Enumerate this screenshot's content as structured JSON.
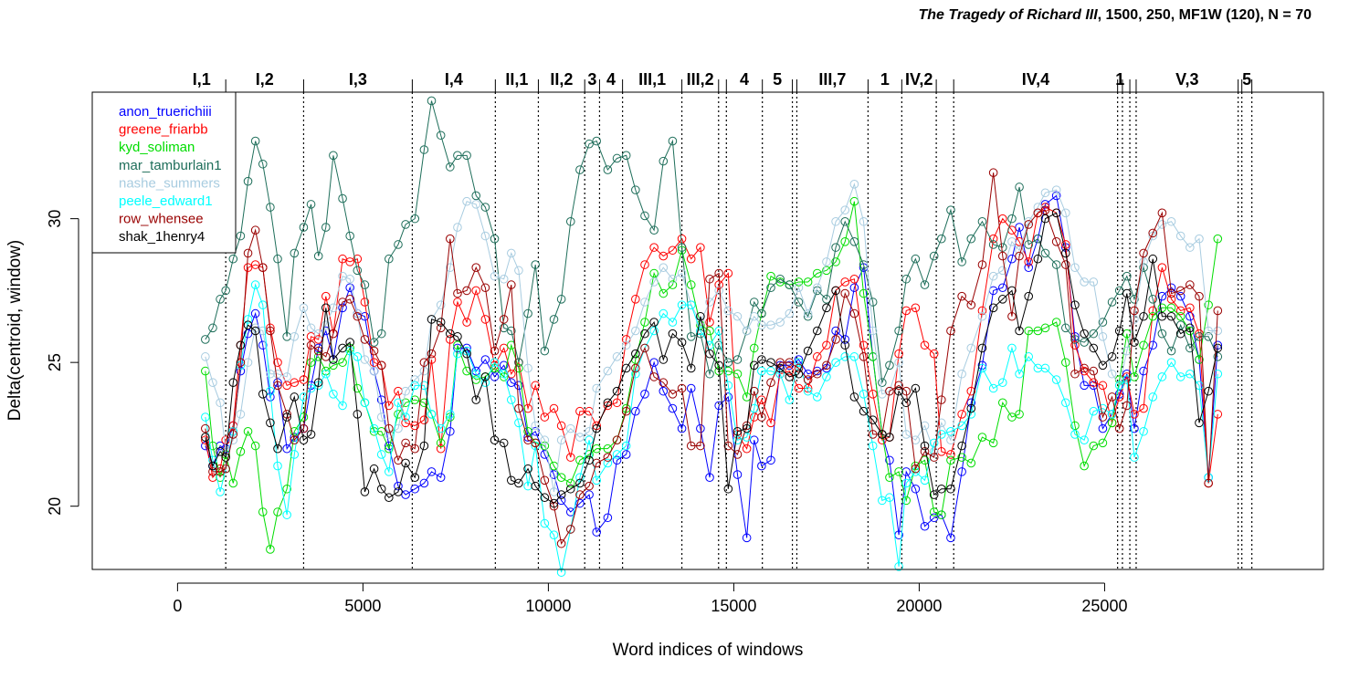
{
  "title_work": "The Tragedy of Richard III",
  "title_rest": ", 1500, 250, MF1W (120), N = 70",
  "chart_data": {
    "type": "line",
    "xlabel": "Word indices of windows",
    "ylabel": "Delta(centroid, window)",
    "xlim": [
      -2300,
      30900
    ],
    "ylim": [
      17.8,
      34.4
    ],
    "xticks": [
      0,
      5000,
      10000,
      15000,
      20000,
      25000
    ],
    "yticks": [
      20,
      25,
      30
    ],
    "markers": "open-circle",
    "legend_position": "top-left",
    "scenes": [
      {
        "pos": 1300,
        "label": "I,1"
      },
      {
        "pos": 3400,
        "label": "I,2"
      },
      {
        "pos": 6330,
        "label": "I,3"
      },
      {
        "pos": 8570,
        "label": "I,4"
      },
      {
        "pos": 9730,
        "label": "II,1"
      },
      {
        "pos": 10980,
        "label": "II,2"
      },
      {
        "pos": 11380,
        "label": "3"
      },
      {
        "pos": 12000,
        "label": "4"
      },
      {
        "pos": 13600,
        "label": "III,1"
      },
      {
        "pos": 14590,
        "label": "III,2"
      },
      {
        "pos": 14800,
        "label": ""
      },
      {
        "pos": 15770,
        "label": "4"
      },
      {
        "pos": 16580,
        "label": "5"
      },
      {
        "pos": 16700,
        "label": ""
      },
      {
        "pos": 18620,
        "label": "III,7"
      },
      {
        "pos": 19530,
        "label": "1"
      },
      {
        "pos": 20460,
        "label": "IV,2"
      },
      {
        "pos": 20930,
        "label": ""
      },
      {
        "pos": 25350,
        "label": "IV,4"
      },
      {
        "pos": 25480,
        "label": "1"
      },
      {
        "pos": 25680,
        "label": ""
      },
      {
        "pos": 25850,
        "label": ""
      },
      {
        "pos": 28600,
        "label": "V,3"
      },
      {
        "pos": 28700,
        "label": ""
      },
      {
        "pos": 28970,
        "label": "5"
      }
    ],
    "x": [
      750,
      950,
      1150,
      1300,
      1500,
      1700,
      1900,
      2100,
      2300,
      2500,
      2700,
      2950,
      3150,
      3400,
      3600,
      3800,
      4000,
      4200,
      4450,
      4650,
      4850,
      5050,
      5300,
      5500,
      5700,
      5950,
      6150,
      6400,
      6650,
      6850,
      7100,
      7350,
      7550,
      7800,
      8050,
      8300,
      8550,
      8800,
      9000,
      9200,
      9450,
      9650,
      9900,
      10150,
      10350,
      10600,
      10850,
      11100,
      11300,
      11600,
      11850,
      12100,
      12350,
      12600,
      12850,
      13100,
      13350,
      13600,
      13850,
      14100,
      14350,
      14600,
      14850,
      15100,
      15350,
      15550,
      15750,
      16000,
      16250,
      16500,
      16750,
      17000,
      17250,
      17500,
      17750,
      18000,
      18250,
      18500,
      18750,
      19000,
      19200,
      19450,
      19650,
      19900,
      20150,
      20400,
      20600,
      20850,
      21150,
      21400,
      21700,
      22000,
      22250,
      22500,
      22700,
      22950,
      23200,
      23400,
      23700,
      23950,
      24200,
      24450,
      24700,
      24950,
      25200,
      25400,
      25600,
      25800,
      26050,
      26300,
      26550,
      26800,
      27050,
      27300,
      27550,
      27800,
      28050
    ],
    "series": [
      {
        "name": "anon_truerichiii",
        "color": "#0000ff",
        "values": [
          22.1,
          21.4,
          22.1,
          22.0,
          22.8,
          24.7,
          26.0,
          26.7,
          25.6,
          23.8,
          24.3,
          22.0,
          22.4,
          22.7,
          24.2,
          25.5,
          26.1,
          25.1,
          26.9,
          27.6,
          26.7,
          26.6,
          24.7,
          23.7,
          22.1,
          20.7,
          20.4,
          20.6,
          20.8,
          21.2,
          21.0,
          22.6,
          25.5,
          25.5,
          24.7,
          25.1,
          24.5,
          24.9,
          24.3,
          24.2,
          22.4,
          22.6,
          21.8,
          21.1,
          20.2,
          19.8,
          20.1,
          20.4,
          19.1,
          19.6,
          21.6,
          21.8,
          23.3,
          23.9,
          25.0,
          24.0,
          23.4,
          22.7,
          24.1,
          22.7,
          21.0,
          23.5,
          23.8,
          21.1,
          18.9,
          22.3,
          21.4,
          21.6,
          24.9,
          24.9,
          25.1,
          24.6,
          24.7,
          24.8,
          26.1,
          25.8,
          27.6,
          28.3,
          25.2,
          22.5,
          21.6,
          19.0,
          21.2,
          20.6,
          19.3,
          19.6,
          19.7,
          18.9,
          21.2,
          23.6,
          24.9,
          27.5,
          27.6,
          28.6,
          29.7,
          28.3,
          29.3,
          30.5,
          30.8,
          29.0,
          25.9,
          24.2,
          24.2,
          22.7,
          23.2,
          23.9,
          24.6,
          22.7,
          24.7,
          25.6,
          27.3,
          27.6,
          27.3,
          26.6,
          25.1,
          21.0,
          25.6
        ]
      },
      {
        "name": "greene_friarbb",
        "color": "#ff0000",
        "values": [
          22.3,
          21.0,
          21.3,
          22.3,
          22.8,
          25.6,
          28.3,
          28.4,
          28.3,
          26.2,
          25.0,
          24.2,
          24.3,
          24.4,
          25.9,
          25.8,
          27.3,
          26.0,
          28.6,
          28.5,
          28.6,
          27.1,
          25.0,
          24.9,
          23.5,
          24.0,
          22.9,
          22.8,
          23.0,
          25.1,
          22.0,
          25.8,
          27.1,
          26.4,
          27.5,
          26.5,
          24.9,
          25.5,
          24.6,
          25.0,
          23.4,
          24.2,
          23.1,
          23.4,
          22.8,
          21.7,
          23.3,
          23.3,
          22.8,
          23.5,
          23.6,
          25.8,
          27.2,
          28.4,
          29.0,
          28.7,
          28.9,
          29.3,
          28.6,
          29.0,
          26.4,
          27.7,
          28.1,
          22.5,
          22.0,
          23.1,
          23.7,
          22.9,
          24.6,
          24.7,
          24.1,
          24.1,
          25.2,
          25.6,
          27.5,
          27.8,
          27.9,
          25.6,
          23.9,
          22.3,
          22.4,
          25.3,
          26.8,
          26.9,
          25.6,
          25.3,
          21.9,
          21.8,
          23.2,
          24.0,
          26.8,
          29.3,
          30.0,
          29.6,
          29.2,
          28.5,
          30.2,
          30.4,
          30.2,
          29.1,
          25.6,
          24.7,
          24.3,
          24.2,
          22.9,
          23.8,
          24.5,
          23.2,
          23.4,
          26.8,
          28.3,
          27.2,
          26.8,
          26.9,
          26.0,
          20.8,
          23.2
        ]
      },
      {
        "name": "kyd_soliman",
        "color": "#00dd00",
        "values": [
          24.7,
          22.1,
          21.0,
          21.8,
          20.8,
          21.9,
          22.6,
          22.1,
          19.8,
          18.5,
          19.8,
          20.6,
          22.6,
          23.1,
          25.0,
          25.2,
          24.7,
          24.9,
          25.0,
          25.5,
          24.1,
          23.6,
          22.6,
          22.6,
          22.0,
          23.2,
          23.6,
          23.7,
          23.6,
          23.2,
          22.2,
          23.1,
          25.6,
          24.7,
          24.4,
          24.5,
          24.8,
          24.5,
          25.6,
          24.8,
          22.6,
          22.2,
          22.1,
          21.4,
          21.0,
          20.8,
          21.6,
          21.8,
          22.0,
          22.0,
          22.3,
          23.4,
          25.1,
          26.4,
          28.1,
          27.4,
          27.7,
          28.9,
          27.7,
          26.3,
          26.1,
          24.7,
          24.7,
          24.6,
          23.8,
          25.5,
          26.7,
          28.0,
          27.8,
          27.7,
          27.8,
          27.8,
          28.1,
          28.2,
          28.5,
          29.2,
          30.6,
          27.4,
          25.2,
          22.5,
          21.0,
          21.2,
          20.2,
          21.4,
          21.6,
          19.8,
          19.7,
          21.6,
          21.7,
          21.5,
          22.4,
          22.2,
          23.6,
          23.1,
          23.2,
          26.1,
          26.1,
          26.2,
          26.4,
          25.0,
          22.8,
          21.4,
          22.1,
          22.2,
          22.9,
          24.4,
          26.0,
          24.5,
          25.6,
          26.6,
          26.9,
          26.9,
          26.6,
          26.1,
          25.1,
          27.0,
          29.3
        ]
      },
      {
        "name": "mar_tamburlain1",
        "color": "#1e6e5a",
        "values": [
          25.8,
          26.2,
          27.2,
          27.5,
          28.6,
          29.4,
          31.3,
          32.7,
          31.9,
          30.4,
          28.6,
          25.9,
          28.8,
          29.7,
          30.5,
          28.7,
          29.7,
          32.2,
          30.7,
          29.4,
          28.2,
          27.7,
          25.7,
          26.0,
          28.6,
          29.1,
          29.8,
          30.0,
          32.4,
          34.1,
          32.9,
          31.8,
          32.2,
          32.2,
          30.8,
          30.4,
          29.3,
          26.2,
          26.1,
          25.0,
          26.7,
          28.4,
          25.4,
          26.5,
          27.2,
          29.9,
          31.7,
          32.6,
          32.7,
          31.7,
          32.1,
          32.2,
          31.0,
          30.1,
          29.6,
          32.0,
          32.7,
          29.0,
          25.9,
          26.0,
          24.6,
          25.6,
          25.0,
          25.1,
          26.1,
          27.1,
          26.7,
          27.6,
          27.9,
          27.7,
          27.1,
          26.6,
          27.5,
          27.2,
          29.0,
          29.9,
          29.2,
          28.4,
          27.1,
          24.3,
          24.9,
          26.1,
          27.9,
          28.6,
          27.7,
          28.7,
          29.3,
          30.3,
          28.5,
          29.3,
          29.9,
          29.1,
          29.0,
          30.0,
          31.1,
          29.1,
          29.3,
          28.8,
          28.4,
          26.2,
          25.8,
          25.7,
          26.0,
          26.4,
          27.1,
          27.5,
          28.0,
          27.2,
          28.3,
          27.2,
          26.0,
          25.4,
          26.3,
          25.5,
          25.9,
          25.9,
          25.2
        ]
      },
      {
        "name": "nashe_summers",
        "color": "#a8cce0",
        "values": [
          25.2,
          24.3,
          23.6,
          21.9,
          22.3,
          23.2,
          25.0,
          26.2,
          26.1,
          24.6,
          24.6,
          24.5,
          25.9,
          26.9,
          26.2,
          26.0,
          26.3,
          26.9,
          28.0,
          27.9,
          26.7,
          25.1,
          24.7,
          23.1,
          22.5,
          22.7,
          24.0,
          24.4,
          24.7,
          26.5,
          27.0,
          28.3,
          29.7,
          30.6,
          30.5,
          29.4,
          28.0,
          27.9,
          28.8,
          28.2,
          24.8,
          22.8,
          22.3,
          20.5,
          22.3,
          22.7,
          22.4,
          22.6,
          24.1,
          24.7,
          25.2,
          25.6,
          26.1,
          27.1,
          27.8,
          28.3,
          27.9,
          28.1,
          27.0,
          26.4,
          27.1,
          27.5,
          26.8,
          26.6,
          26.1,
          26.6,
          26.3,
          26.3,
          26.4,
          26.7,
          27.6,
          26.7,
          27.6,
          28.5,
          29.9,
          30.3,
          31.2,
          29.9,
          26.1,
          23.9,
          24.0,
          25.0,
          22.5,
          22.3,
          22.8,
          21.9,
          22.9,
          22.3,
          24.6,
          25.5,
          26.6,
          28.0,
          28.2,
          29.2,
          28.9,
          29.9,
          30.4,
          30.9,
          31.0,
          30.2,
          28.3,
          27.8,
          27.8,
          25.9,
          24.6,
          24.2,
          25.4,
          26.5,
          28.5,
          29.4,
          29.8,
          29.9,
          29.4,
          29.0,
          29.3,
          26.1,
          26.1
        ]
      },
      {
        "name": "peele_edward1",
        "color": "#00ffff",
        "values": [
          23.1,
          21.6,
          20.5,
          21.3,
          22.6,
          24.9,
          26.5,
          27.7,
          27.0,
          24.0,
          21.4,
          19.7,
          21.8,
          23.8,
          24.1,
          24.2,
          24.6,
          23.9,
          23.5,
          25.4,
          25.2,
          23.6,
          22.7,
          21.8,
          21.2,
          23.6,
          23.1,
          24.2,
          24.2,
          23.2,
          22.7,
          23.2,
          25.3,
          25.4,
          24.6,
          24.3,
          25.0,
          24.6,
          23.7,
          22.9,
          20.7,
          22.1,
          19.4,
          19.0,
          17.7,
          19.2,
          21.0,
          22.3,
          20.9,
          21.5,
          21.8,
          22.1,
          24.6,
          25.5,
          26.1,
          26.7,
          26.4,
          27.0,
          27.0,
          26.1,
          25.6,
          26.1,
          24.2,
          22.3,
          22.4,
          23.4,
          24.7,
          24.7,
          24.6,
          23.7,
          25.0,
          24.0,
          23.8,
          24.5,
          25.0,
          25.2,
          25.2,
          23.9,
          22.1,
          20.2,
          20.3,
          17.9,
          20.8,
          21.2,
          20.9,
          22.2,
          22.5,
          22.6,
          22.8,
          23.2,
          24.8,
          24.1,
          24.3,
          25.5,
          24.6,
          25.2,
          24.8,
          24.8,
          24.4,
          23.6,
          22.5,
          22.3,
          23.3,
          23.4,
          23.2,
          24.2,
          24.4,
          21.7,
          22.6,
          23.8,
          24.5,
          25.0,
          24.5,
          24.6,
          24.2,
          21.0,
          24.6
        ]
      },
      {
        "name": "row_whensee",
        "color": "#990000",
        "values": [
          22.7,
          21.2,
          21.2,
          21.3,
          22.5,
          25.0,
          28.8,
          29.6,
          28.3,
          26.1,
          24.2,
          23.2,
          22.3,
          22.7,
          25.6,
          25.4,
          25.2,
          26.0,
          27.1,
          27.2,
          26.6,
          25.8,
          25.4,
          24.9,
          22.7,
          21.6,
          22.2,
          22.0,
          25.0,
          25.3,
          26.2,
          29.3,
          27.4,
          27.5,
          28.3,
          27.6,
          25.4,
          26.5,
          27.7,
          23.4,
          22.3,
          22.2,
          20.9,
          20.0,
          18.7,
          19.2,
          20.4,
          20.7,
          21.5,
          21.7,
          22.3,
          23.3,
          24.8,
          25.5,
          24.5,
          24.3,
          23.9,
          24.1,
          22.1,
          22.1,
          27.9,
          28.1,
          22.1,
          21.8,
          22.8,
          24.0,
          23.1,
          24.3,
          25.0,
          25.0,
          24.8,
          24.4,
          24.6,
          24.9,
          25.8,
          27.4,
          26.7,
          25.2,
          22.5,
          22.5,
          24.0,
          24.2,
          24.0,
          21.3,
          21.9,
          21.7,
          23.7,
          26.1,
          27.3,
          27.0,
          28.4,
          31.6,
          28.7,
          26.6,
          28.7,
          29.8,
          30.2,
          30.3,
          29.2,
          28.4,
          24.6,
          24.8,
          24.7,
          23.1,
          23.8,
          22.7,
          23.5,
          26.8,
          28.8,
          29.5,
          30.2,
          27.4,
          27.5,
          27.7,
          27.3,
          20.8,
          26.8
        ]
      },
      {
        "name": "shak_1henry4",
        "color": "#000000",
        "values": [
          22.4,
          21.4,
          21.9,
          21.7,
          24.3,
          25.6,
          26.3,
          26.1,
          23.9,
          22.9,
          22.0,
          23.1,
          23.8,
          22.3,
          22.5,
          24.3,
          26.9,
          25.1,
          25.5,
          25.7,
          23.2,
          20.5,
          21.3,
          20.6,
          20.3,
          20.5,
          21.5,
          21.0,
          22.1,
          26.5,
          26.4,
          26.0,
          25.9,
          25.3,
          23.7,
          24.5,
          22.3,
          22.2,
          20.9,
          20.8,
          21.3,
          20.7,
          20.3,
          20.1,
          20.4,
          20.6,
          20.8,
          21.6,
          22.7,
          23.6,
          24.0,
          24.8,
          25.3,
          26.0,
          26.4,
          25.1,
          26.0,
          25.7,
          24.8,
          26.6,
          25.3,
          24.9,
          20.6,
          22.6,
          22.7,
          24.9,
          25.1,
          25.0,
          24.8,
          24.5,
          24.6,
          25.4,
          26.1,
          26.9,
          27.5,
          25.6,
          23.8,
          23.3,
          23.0,
          22.5,
          22.4,
          24.0,
          23.6,
          24.1,
          22.1,
          20.4,
          20.6,
          20.6,
          22.1,
          23.4,
          25.5,
          26.9,
          27.2,
          27.5,
          26.1,
          27.3,
          28.6,
          30.0,
          30.2,
          28.8,
          27.0,
          26.0,
          25.5,
          24.9,
          25.2,
          26.1,
          27.4,
          25.7,
          26.6,
          28.6,
          26.6,
          26.6,
          26.0,
          26.2,
          22.9,
          24.0,
          25.5
        ]
      }
    ]
  }
}
